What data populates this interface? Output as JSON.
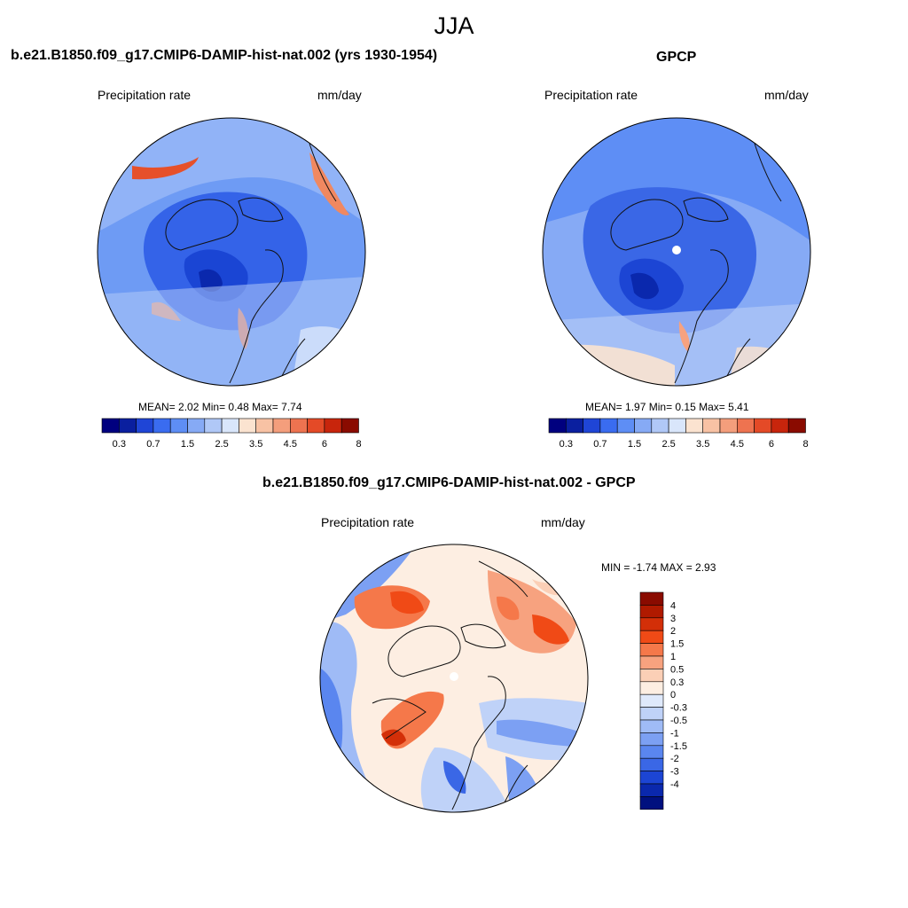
{
  "figure": {
    "season": "JJA"
  },
  "panels": [
    {
      "title": "b.e21.B1850.f09_g17.CMIP6-DAMIP-hist-nat.002 (yrs 1930-1954)",
      "variable": "Precipitation rate",
      "units": "mm/day",
      "stats": {
        "mean_label": "MEAN=",
        "mean": "2.02",
        "min_label": "Min=",
        "min": "0.48",
        "max_label": "Max=",
        "max": "7.74"
      },
      "map_description": "North polar stereographic; strong low precipitation (blue) over central Arctic, high (red) along storm tracks"
    },
    {
      "title": "GPCP",
      "variable": "Precipitation rate",
      "units": "mm/day",
      "stats": {
        "mean_label": "MEAN=",
        "mean": "1.97",
        "min_label": "Min=",
        "min": "0.15",
        "max_label": "Max=",
        "max": "5.41"
      }
    },
    {
      "title": "b.e21.B1850.f09_g17.CMIP6-DAMIP-hist-nat.002 - GPCP",
      "variable": "Precipitation rate",
      "units": "mm/day",
      "stats": {
        "text": "MIN =  -1.74 MAX =   2.93"
      }
    }
  ],
  "colorbar_abs": {
    "colors": [
      "#00007f",
      "#0a1f9f",
      "#1f45d6",
      "#3a6cf0",
      "#5e8ef5",
      "#86aaf5",
      "#b0c8f7",
      "#d9e6fb",
      "#fbe3d0",
      "#f8c2a4",
      "#f49e7c",
      "#ee7350",
      "#e44a27",
      "#c8250c",
      "#8a0b00"
    ],
    "tick_labels": [
      "0.3",
      "0.7",
      "1.5",
      "2.5",
      "3.5",
      "4.5",
      "6",
      "8"
    ]
  },
  "colorbar_diff": {
    "colors": [
      "#8a0b00",
      "#b01a00",
      "#d32f08",
      "#f04a16",
      "#f5784a",
      "#f7a27f",
      "#fbcfb6",
      "#fdeee2",
      "#dfe9fb",
      "#bfd2f8",
      "#9fbbf6",
      "#7ca0f3",
      "#5a86ef",
      "#3a67e6",
      "#1c45d4",
      "#0a28ad",
      "#00107f"
    ],
    "tick_labels": [
      "4",
      "3",
      "2",
      "1.5",
      "1",
      "0.5",
      "0.3",
      "0",
      "-0.3",
      "-0.5",
      "-1",
      "-1.5",
      "-2",
      "-3",
      "-4"
    ]
  }
}
